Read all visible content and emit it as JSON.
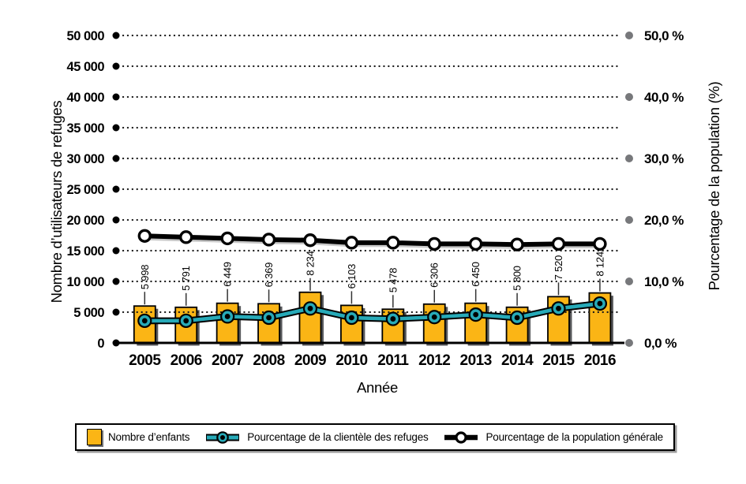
{
  "chart_data": {
    "type": "bar",
    "subtype": "combo-bar-two-lines",
    "categories": [
      "2005",
      "2006",
      "2007",
      "2008",
      "2009",
      "2010",
      "2011",
      "2012",
      "2013",
      "2014",
      "2015",
      "2016"
    ],
    "xlabel": "Année",
    "ylabel_left": "Nombre d’utilisateurs de refuges",
    "ylabel_right": "Pourcentage de la population (%)",
    "ylim_left": [
      0,
      50000
    ],
    "ylim_right": [
      0,
      50
    ],
    "left_axis": {
      "tick_step": 5000,
      "tick_labels": [
        "0",
        "5 000",
        "10 000",
        "15 000",
        "20 000",
        "25 000",
        "30 000",
        "35 000",
        "40 000",
        "45 000",
        "50 000"
      ]
    },
    "right_axis": {
      "tick_step": 10,
      "tick_labels": [
        "0,0 %",
        "10,0 %",
        "20,0 %",
        "30,0 %",
        "40,0 %",
        "50,0 %"
      ]
    },
    "series": [
      {
        "name": "Nombre d’enfants",
        "type": "bar",
        "axis": "left",
        "color": "#FBB515",
        "values": [
          5998,
          5791,
          6449,
          6369,
          8234,
          6103,
          5478,
          6306,
          6450,
          5800,
          7520,
          8124
        ],
        "value_labels": [
          "5 998",
          "5 791",
          "6 449",
          "6 369",
          "8 234",
          "6 103",
          "5 478",
          "6 306",
          "6 450",
          "5 800",
          "7 520",
          "8 124"
        ]
      },
      {
        "name": "Pourcentage de la clientèle des refuges",
        "type": "line",
        "axis": "right",
        "color": "#27AAB8",
        "values": [
          3.6,
          3.6,
          4.3,
          4.1,
          5.6,
          4.1,
          3.9,
          4.2,
          4.6,
          4.1,
          5.6,
          6.4
        ]
      },
      {
        "name": "Pourcentage de la population générale",
        "type": "line",
        "axis": "right",
        "color": "#000000",
        "values": [
          17.4,
          17.2,
          17.0,
          16.8,
          16.7,
          16.3,
          16.3,
          16.1,
          16.1,
          16.0,
          16.1,
          16.1
        ]
      }
    ],
    "colors": {
      "grid_dot": "#1a1a1a",
      "left_axis_dot": "#000000",
      "right_axis_dot": "#77787B",
      "bar_shadow": "#58595B",
      "marker_fill_population": "#FFFFFF"
    },
    "grid": "dotted-horizontal",
    "legend_position": "bottom"
  }
}
